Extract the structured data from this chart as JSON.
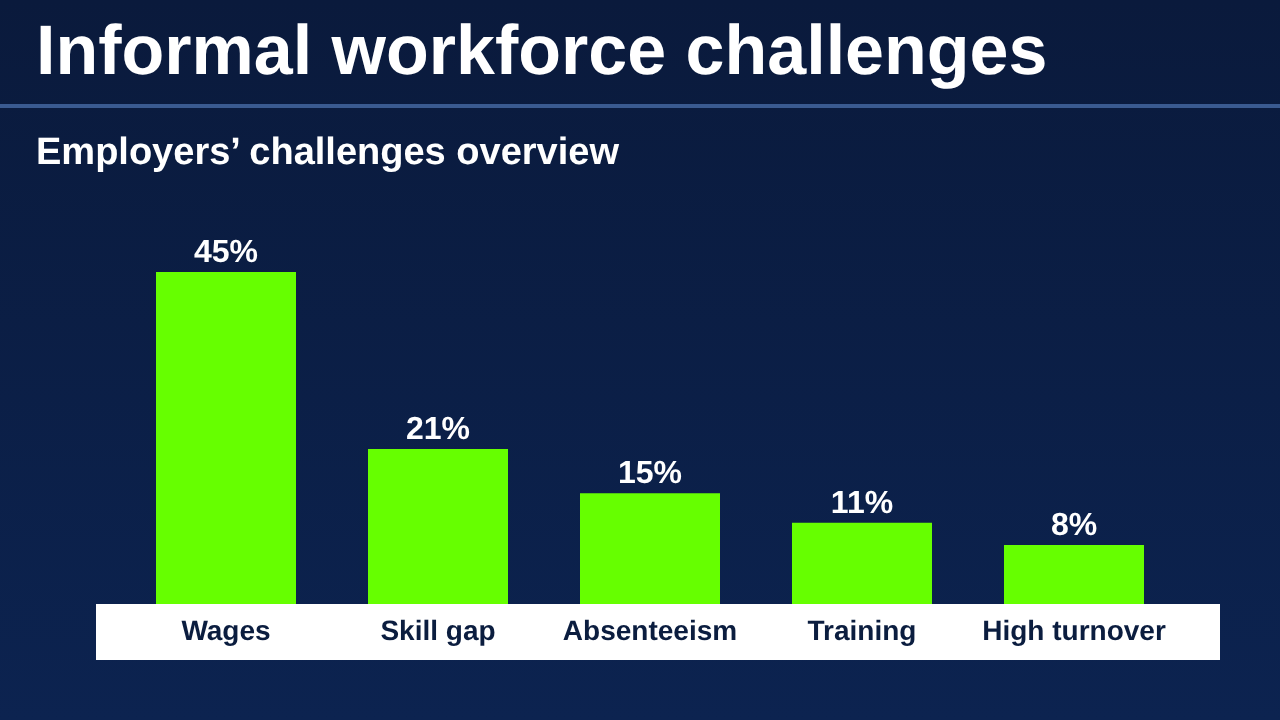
{
  "chart_data": {
    "type": "bar",
    "title": "Informal workforce challenges",
    "subtitle": "Employers’ challenges overview",
    "categories": [
      "Wages",
      "Skill gap",
      "Absenteeism",
      "Training",
      "High turnover"
    ],
    "values": [
      45,
      21,
      15,
      11,
      8
    ],
    "value_labels": [
      "45%",
      "21%",
      "15%",
      "11%",
      "8%"
    ],
    "color": "#66ff00",
    "grid": false,
    "legend": false
  }
}
